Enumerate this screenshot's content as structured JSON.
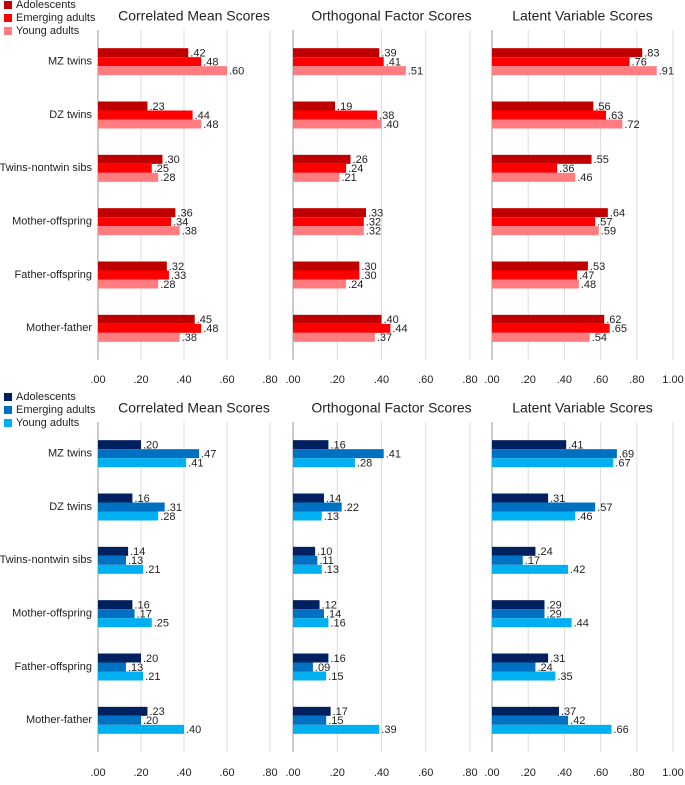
{
  "chart_data": [
    {
      "type": "bar",
      "orientation": "horizontal",
      "title": "Correlated Mean Scores",
      "legend": "top-left",
      "categories": [
        "MZ twins",
        "DZ twins",
        "Twins-nontwin sibs",
        "Mother-offspring",
        "Father-offspring",
        "Mother-father"
      ],
      "series": [
        {
          "name": "Adolescents",
          "color": "#c00000",
          "values": [
            0.42,
            0.23,
            0.3,
            0.36,
            0.32,
            0.45
          ],
          "value_labels": [
            ".42",
            ".23",
            ".30",
            ".36",
            ".32",
            ".45"
          ]
        },
        {
          "name": "Emerging adults",
          "color": "#ff0000",
          "values": [
            0.48,
            0.44,
            0.25,
            0.34,
            0.33,
            0.48
          ],
          "value_labels": [
            ".48",
            ".44",
            ".25",
            ".34",
            ".33",
            ".48"
          ]
        },
        {
          "name": "Young adults",
          "color": "#ff7c80",
          "values": [
            0.6,
            0.48,
            0.28,
            0.38,
            0.28,
            0.38
          ],
          "value_labels": [
            ".60",
            ".48",
            ".28",
            ".38",
            ".28",
            ".38"
          ]
        }
      ],
      "xlim": [
        0,
        0.8
      ],
      "xticks": [
        {
          "value": 0,
          "label": ".00"
        },
        {
          "value": 0.2,
          "label": ".20"
        },
        {
          "value": 0.4,
          "label": ".40"
        },
        {
          "value": 0.6,
          "label": ".60"
        },
        {
          "value": 0.8,
          "label": ".80"
        }
      ],
      "grid": true
    },
    {
      "type": "bar",
      "orientation": "horizontal",
      "title": "Orthogonal Factor Scores",
      "categories": [
        "MZ twins",
        "DZ twins",
        "Twins-nontwin sibs",
        "Mother-offspring",
        "Father-offspring",
        "Mother-father"
      ],
      "series": [
        {
          "name": "Adolescents",
          "color": "#c00000",
          "values": [
            0.39,
            0.19,
            0.26,
            0.33,
            0.3,
            0.4
          ],
          "value_labels": [
            ".39",
            ".19",
            ".26",
            ".33",
            ".30",
            ".40"
          ]
        },
        {
          "name": "Emerging adults",
          "color": "#ff0000",
          "values": [
            0.41,
            0.38,
            0.24,
            0.32,
            0.3,
            0.44
          ],
          "value_labels": [
            ".41",
            ".38",
            ".24",
            ".32",
            ".30",
            ".44"
          ]
        },
        {
          "name": "Young adults",
          "color": "#ff7c80",
          "values": [
            0.51,
            0.4,
            0.21,
            0.32,
            0.24,
            0.37
          ],
          "value_labels": [
            ".51",
            ".40",
            ".21",
            ".32",
            ".24",
            ".37"
          ]
        }
      ],
      "xlim": [
        0,
        0.8
      ],
      "xticks": [
        {
          "value": 0,
          "label": ".00"
        },
        {
          "value": 0.2,
          "label": ".20"
        },
        {
          "value": 0.4,
          "label": ".40"
        },
        {
          "value": 0.6,
          "label": ".60"
        },
        {
          "value": 0.8,
          "label": ".80"
        }
      ],
      "grid": true
    },
    {
      "type": "bar",
      "orientation": "horizontal",
      "title": "Latent Variable Scores",
      "categories": [
        "MZ twins",
        "DZ twins",
        "Twins-nontwin sibs",
        "Mother-offspring",
        "Father-offspring",
        "Mother-father"
      ],
      "series": [
        {
          "name": "Adolescents",
          "color": "#c00000",
          "values": [
            0.83,
            0.56,
            0.55,
            0.64,
            0.53,
            0.62
          ],
          "value_labels": [
            ".83",
            ".56",
            ".55",
            ".64",
            ".53",
            ".62"
          ]
        },
        {
          "name": "Emerging adults",
          "color": "#ff0000",
          "values": [
            0.76,
            0.63,
            0.36,
            0.57,
            0.47,
            0.65
          ],
          "value_labels": [
            ".76",
            ".63",
            ".36",
            ".57",
            ".47",
            ".65"
          ]
        },
        {
          "name": "Young adults",
          "color": "#ff7c80",
          "values": [
            0.91,
            0.72,
            0.46,
            0.59,
            0.48,
            0.54
          ],
          "value_labels": [
            ".91",
            ".72",
            ".46",
            ".59",
            ".48",
            ".54"
          ]
        }
      ],
      "xlim": [
        0,
        1.0
      ],
      "xticks": [
        {
          "value": 0,
          "label": ".00"
        },
        {
          "value": 0.2,
          "label": ".20"
        },
        {
          "value": 0.4,
          "label": ".40"
        },
        {
          "value": 0.6,
          "label": ".60"
        },
        {
          "value": 0.8,
          "label": ".80"
        },
        {
          "value": 1.0,
          "label": "1.00"
        }
      ],
      "grid": true
    },
    {
      "type": "bar",
      "orientation": "horizontal",
      "title": "Correlated Mean Scores",
      "legend": "top-left",
      "categories": [
        "MZ twins",
        "DZ twins",
        "Twins-nontwin sibs",
        "Mother-offspring",
        "Father-offspring",
        "Mother-father"
      ],
      "series": [
        {
          "name": "Adolescents",
          "color": "#002060",
          "values": [
            0.2,
            0.16,
            0.14,
            0.16,
            0.2,
            0.23
          ],
          "value_labels": [
            ".20",
            ".16",
            ".14",
            ".16",
            ".20",
            ".23"
          ]
        },
        {
          "name": "Emerging adults",
          "color": "#0070c0",
          "values": [
            0.47,
            0.31,
            0.13,
            0.17,
            0.13,
            0.2
          ],
          "value_labels": [
            ".47",
            ".31",
            ".13",
            ".17",
            ".13",
            ".20"
          ]
        },
        {
          "name": "Young adults",
          "color": "#00b0f0",
          "values": [
            0.41,
            0.28,
            0.21,
            0.25,
            0.21,
            0.4
          ],
          "value_labels": [
            ".41",
            ".28",
            ".21",
            ".25",
            ".21",
            ".40"
          ]
        }
      ],
      "xlim": [
        0,
        0.8
      ],
      "xticks": [
        {
          "value": 0,
          "label": ".00"
        },
        {
          "value": 0.2,
          "label": ".20"
        },
        {
          "value": 0.4,
          "label": ".40"
        },
        {
          "value": 0.6,
          "label": ".60"
        },
        {
          "value": 0.8,
          "label": ".80"
        }
      ],
      "grid": true
    },
    {
      "type": "bar",
      "orientation": "horizontal",
      "title": "Orthogonal Factor Scores",
      "categories": [
        "MZ twins",
        "DZ twins",
        "Twins-nontwin sibs",
        "Mother-offspring",
        "Father-offspring",
        "Mother-father"
      ],
      "series": [
        {
          "name": "Adolescents",
          "color": "#002060",
          "values": [
            0.16,
            0.14,
            0.1,
            0.12,
            0.16,
            0.17
          ],
          "value_labels": [
            ".16",
            ".14",
            ".10",
            ".12",
            ".16",
            ".17"
          ]
        },
        {
          "name": "Emerging adults",
          "color": "#0070c0",
          "values": [
            0.41,
            0.22,
            0.11,
            0.14,
            0.09,
            0.15
          ],
          "value_labels": [
            ".41",
            ".22",
            ".11",
            ".14",
            ".09",
            ".15"
          ]
        },
        {
          "name": "Young adults",
          "color": "#00b0f0",
          "values": [
            0.28,
            0.13,
            0.13,
            0.16,
            0.15,
            0.39
          ],
          "value_labels": [
            ".28",
            ".13",
            ".13",
            ".16",
            ".15",
            ".39"
          ]
        }
      ],
      "xlim": [
        0,
        0.8
      ],
      "xticks": [
        {
          "value": 0,
          "label": ".00"
        },
        {
          "value": 0.2,
          "label": ".20"
        },
        {
          "value": 0.4,
          "label": ".40"
        },
        {
          "value": 0.6,
          "label": ".60"
        },
        {
          "value": 0.8,
          "label": ".80"
        }
      ],
      "grid": true
    },
    {
      "type": "bar",
      "orientation": "horizontal",
      "title": "Latent Variable Scores",
      "categories": [
        "MZ twins",
        "DZ twins",
        "Twins-nontwin sibs",
        "Mother-offspring",
        "Father-offspring",
        "Mother-father"
      ],
      "series": [
        {
          "name": "Adolescents",
          "color": "#002060",
          "values": [
            0.41,
            0.31,
            0.24,
            0.29,
            0.31,
            0.37
          ],
          "value_labels": [
            ".41",
            ".31",
            ".24",
            ".29",
            ".31",
            ".37"
          ]
        },
        {
          "name": "Emerging adults",
          "color": "#0070c0",
          "values": [
            0.69,
            0.57,
            0.17,
            0.29,
            0.24,
            0.42
          ],
          "value_labels": [
            ".69",
            ".57",
            ".17",
            ".29",
            ".24",
            ".42"
          ]
        },
        {
          "name": "Young adults",
          "color": "#00b0f0",
          "values": [
            0.67,
            0.46,
            0.42,
            0.44,
            0.35,
            0.66
          ],
          "value_labels": [
            ".67",
            ".46",
            ".42",
            ".44",
            ".35",
            ".66"
          ]
        }
      ],
      "xlim": [
        0,
        1.0
      ],
      "xticks": [
        {
          "value": 0,
          "label": ".00"
        },
        {
          "value": 0.2,
          "label": ".20"
        },
        {
          "value": 0.4,
          "label": ".40"
        },
        {
          "value": 0.6,
          "label": ".60"
        },
        {
          "value": 0.8,
          "label": ".80"
        },
        {
          "value": 1.0,
          "label": "1.00"
        }
      ],
      "grid": true
    }
  ]
}
